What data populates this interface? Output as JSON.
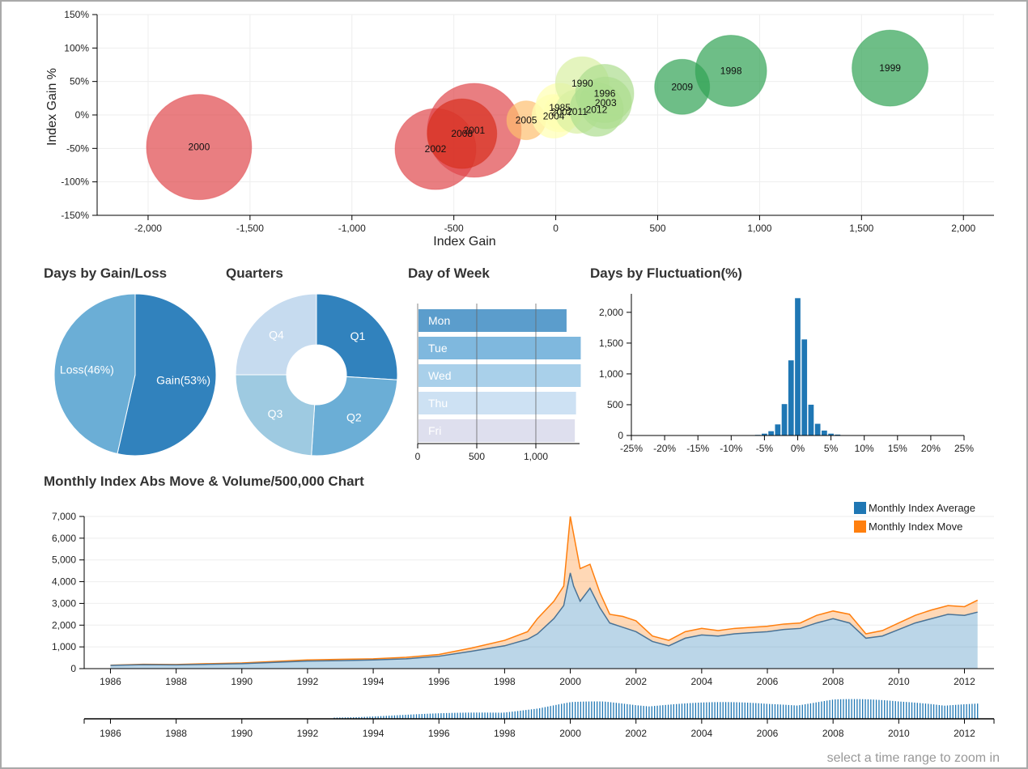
{
  "titles": {
    "gain_loss": "Days by Gain/Loss",
    "quarters": "Quarters",
    "day_of_week": "Day of Week",
    "fluctuation": "Days by Fluctuation(%)",
    "monthly": "Monthly Index Abs Move & Volume/500,000 Chart"
  },
  "hint": "select a time range to zoom in",
  "colors": {
    "blue_dark": "#3182bd",
    "blue_mid": "#6baed6",
    "blue_light": "#9ecae1",
    "blue_pale": "#c6dbef",
    "orange": "#ff7f0e",
    "steel": "#1f77b4",
    "red": "#e0474c",
    "green": "#31a354"
  },
  "chart_data": [
    {
      "id": "bubble",
      "type": "scatter",
      "xlabel": "Index Gain",
      "ylabel": "Index Gain %",
      "xlim": [
        -2250,
        2150
      ],
      "ylim": [
        -150,
        150
      ],
      "xticks": [
        -2000,
        -1500,
        -1000,
        -500,
        0,
        500,
        1000,
        1500,
        2000
      ],
      "xtick_labels": [
        "-2,000",
        "-1,500",
        "-1,000",
        "-500",
        "0",
        "500",
        "1,000",
        "1,500",
        "2,000"
      ],
      "yticks": [
        150,
        100,
        50,
        0,
        -50,
        -100,
        -150
      ],
      "ytick_labels": [
        "150%",
        "100%",
        "50%",
        "0%",
        "-50%",
        "-100%",
        "-150%"
      ],
      "points": [
        {
          "label": "2000",
          "x": -1750,
          "y": -48,
          "r": 65,
          "color": "#e0474c"
        },
        {
          "label": "2001",
          "x": -400,
          "y": -23,
          "r": 58,
          "color": "#e0474c"
        },
        {
          "label": "2002",
          "x": -590,
          "y": -51,
          "r": 50,
          "color": "#e0474c"
        },
        {
          "label": "2008",
          "x": -460,
          "y": -28,
          "r": 43,
          "color": "#d7301f"
        },
        {
          "label": "2005",
          "x": -145,
          "y": -8,
          "r": 24,
          "color": "#fdbf6f"
        },
        {
          "label": "2004",
          "x": -10,
          "y": -2,
          "r": 27,
          "color": "#ffffb2"
        },
        {
          "label": "2007",
          "x": 30,
          "y": 4,
          "r": 22,
          "color": "#ffffb2"
        },
        {
          "label": "1985",
          "x": 20,
          "y": 11,
          "r": 30,
          "color": "#ffffb2"
        },
        {
          "label": "1990",
          "x": 130,
          "y": 47,
          "r": 33,
          "color": "#d9f0a3"
        },
        {
          "label": "2011",
          "x": 105,
          "y": 5,
          "r": 27,
          "color": "#d9f0a3"
        },
        {
          "label": "2003",
          "x": 245,
          "y": 18,
          "r": 32,
          "color": "#addd8e"
        },
        {
          "label": "1996",
          "x": 240,
          "y": 32,
          "r": 36,
          "color": "#addd8e"
        },
        {
          "label": "2012",
          "x": 200,
          "y": 8,
          "r": 33,
          "color": "#addd8e"
        },
        {
          "label": "2009",
          "x": 620,
          "y": 42,
          "r": 34,
          "color": "#31a354"
        },
        {
          "label": "1998",
          "x": 860,
          "y": 66,
          "r": 44,
          "color": "#31a354"
        },
        {
          "label": "1999",
          "x": 1640,
          "y": 70,
          "r": 47,
          "color": "#31a354"
        }
      ]
    },
    {
      "id": "gain_loss",
      "type": "pie",
      "slices": [
        {
          "label": "Gain(53%)",
          "value": 53,
          "color": "#3182bd"
        },
        {
          "label": "Loss(46%)",
          "value": 46,
          "color": "#6baed6"
        }
      ]
    },
    {
      "id": "quarters",
      "type": "pie",
      "donut": true,
      "slices": [
        {
          "label": "Q1",
          "value": 26,
          "color": "#3182bd"
        },
        {
          "label": "Q2",
          "value": 25,
          "color": "#6baed6"
        },
        {
          "label": "Q3",
          "value": 24,
          "color": "#9ecae1"
        },
        {
          "label": "Q4",
          "value": 25,
          "color": "#c6dbef"
        }
      ]
    },
    {
      "id": "day_of_week",
      "type": "bar",
      "orientation": "horizontal",
      "categories": [
        "Mon",
        "Tue",
        "Wed",
        "Thu",
        "Fri"
      ],
      "values": [
        1260,
        1380,
        1380,
        1340,
        1330
      ],
      "colors": [
        "#5b9dcc",
        "#7fb8de",
        "#a9d0ea",
        "#cde1f3",
        "#dedfee"
      ],
      "xlim": [
        0,
        1370
      ],
      "xticks": [
        0,
        500,
        1000
      ],
      "xtick_labels": [
        "0",
        "500",
        "1,000"
      ]
    },
    {
      "id": "fluctuation",
      "type": "bar",
      "x": [
        -7,
        -6,
        -5,
        -4,
        -3,
        -2,
        -1,
        0,
        1,
        2,
        3,
        4,
        5,
        6,
        7
      ],
      "values": [
        5,
        10,
        30,
        70,
        180,
        510,
        1220,
        2230,
        1560,
        500,
        190,
        80,
        30,
        15,
        5
      ],
      "xlim": [
        -25,
        25
      ],
      "ylim": [
        0,
        2300
      ],
      "xticks": [
        -25,
        -20,
        -15,
        -10,
        -5,
        0,
        5,
        10,
        15,
        20,
        25
      ],
      "xtick_labels": [
        "-25%",
        "-20%",
        "-15%",
        "-10%",
        "-5%",
        "0%",
        "5%",
        "10%",
        "15%",
        "20%",
        "25%"
      ],
      "yticks": [
        0,
        500,
        1000,
        1500,
        2000
      ],
      "ytick_labels": [
        "0",
        "500",
        "1,000",
        "1,500",
        "2,000"
      ]
    },
    {
      "id": "monthly",
      "type": "area",
      "legend": [
        "Monthly Index Average",
        "Monthly Index Move"
      ],
      "legend_placement": "top-right",
      "xlim": [
        1985.2,
        2012.9
      ],
      "ylim": [
        0,
        7000
      ],
      "xticks": [
        1986,
        1988,
        1990,
        1992,
        1994,
        1996,
        1998,
        2000,
        2002,
        2004,
        2006,
        2008,
        2010,
        2012
      ],
      "xtick_labels": [
        "1986",
        "1988",
        "1990",
        "1992",
        "1994",
        "1996",
        "1998",
        "2000",
        "2002",
        "2004",
        "2006",
        "2008",
        "2010",
        "2012"
      ],
      "yticks": [
        0,
        1000,
        2000,
        3000,
        4000,
        5000,
        6000,
        7000
      ],
      "ytick_labels": [
        "0",
        "1,000",
        "2,000",
        "3,000",
        "4,000",
        "5,000",
        "6,000",
        "7,000"
      ],
      "x": [
        1986,
        1987,
        1988,
        1989,
        1990,
        1991,
        1992,
        1993,
        1994,
        1995,
        1996,
        1997,
        1998,
        1998.7,
        1999,
        1999.5,
        1999.8,
        2000,
        2000.1,
        2000.3,
        2000.6,
        2000.9,
        2001.2,
        2001.6,
        2002,
        2002.5,
        2003,
        2003.5,
        2004,
        2004.5,
        2005,
        2005.5,
        2006,
        2006.5,
        2007,
        2007.5,
        2008,
        2008.5,
        2009,
        2009.5,
        2010,
        2010.5,
        2011,
        2011.5,
        2012,
        2012.4
      ],
      "series": [
        {
          "name": "Monthly Index Average",
          "values": [
            150,
            180,
            170,
            200,
            230,
            290,
            350,
            370,
            400,
            450,
            570,
            800,
            1050,
            1350,
            1600,
            2300,
            2900,
            4400,
            3800,
            3100,
            3700,
            2800,
            2100,
            1900,
            1700,
            1250,
            1050,
            1400,
            1550,
            1500,
            1600,
            1650,
            1700,
            1800,
            1850,
            2100,
            2300,
            2100,
            1400,
            1500,
            1800,
            2100,
            2300,
            2500,
            2450,
            2600
          ]
        },
        {
          "name": "Monthly Index Move",
          "values": [
            160,
            200,
            190,
            230,
            260,
            330,
            400,
            430,
            450,
            520,
            650,
            950,
            1300,
            1700,
            2300,
            3100,
            3800,
            7000,
            6200,
            4600,
            4800,
            3500,
            2500,
            2400,
            2200,
            1500,
            1300,
            1700,
            1850,
            1750,
            1850,
            1900,
            1950,
            2050,
            2100,
            2450,
            2650,
            2500,
            1600,
            1750,
            2100,
            2450,
            2700,
            2900,
            2850,
            3150
          ]
        }
      ]
    },
    {
      "id": "volume_brush",
      "type": "bar",
      "xlim": [
        1985.2,
        2012.9
      ],
      "xticks": [
        1986,
        1988,
        1990,
        1992,
        1994,
        1996,
        1998,
        2000,
        2002,
        2004,
        2006,
        2008,
        2010,
        2012
      ],
      "xtick_labels": [
        "1986",
        "1988",
        "1990",
        "1992",
        "1994",
        "1996",
        "1998",
        "2000",
        "2002",
        "2004",
        "2006",
        "2008",
        "2010",
        "2012"
      ],
      "x": [
        1992.8,
        1994,
        1995,
        1996,
        1997,
        1998,
        1999,
        2000,
        2001,
        2002,
        2003,
        2004,
        2005,
        2006,
        2007,
        2008,
        2009,
        2010,
        2011,
        2012.4
      ],
      "values": [
        1,
        2,
        3,
        4,
        5,
        6,
        8,
        12,
        13,
        12,
        12,
        12,
        12,
        12,
        13,
        15,
        14,
        13,
        13,
        12
      ]
    }
  ]
}
